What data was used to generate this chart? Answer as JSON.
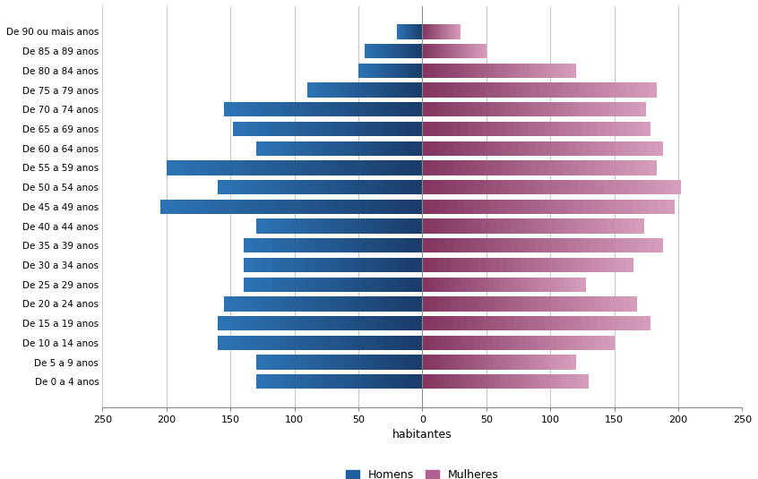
{
  "age_groups": [
    "De 0 a 4 anos",
    "De 5 a 9 anos",
    "De 10 a 14 anos",
    "De 15 a 19 anos",
    "De 20 a 24 anos",
    "De 25 a 29 anos",
    "De 30 a 34 anos",
    "De 35 a 39 anos",
    "De 40 a 44 anos",
    "De 45 a 49 anos",
    "De 50 a 54 anos",
    "De 55 a 59 anos",
    "De 60 a 64 anos",
    "De 65 a 69 anos",
    "De 70 a 74 anos",
    "De 75 a 79 anos",
    "De 80 a 84 anos",
    "De 85 a 89 anos",
    "De 90 ou mais anos"
  ],
  "homens": [
    130,
    130,
    160,
    160,
    155,
    140,
    140,
    140,
    130,
    205,
    160,
    200,
    130,
    148,
    155,
    90,
    50,
    45,
    20
  ],
  "mulheres": [
    130,
    120,
    150,
    178,
    168,
    128,
    165,
    188,
    173,
    197,
    202,
    183,
    188,
    178,
    175,
    183,
    120,
    50,
    30
  ],
  "color_homens_dark": "#1a3d6b",
  "color_homens_light": "#2e75b6",
  "color_mulheres_dark": "#833660",
  "color_mulheres_light": "#d9a0bf",
  "xlabel": "habitantes",
  "legend_homens": "Homens",
  "legend_mulheres": "Mulheres",
  "xlim": 250,
  "xticks": [
    -250,
    -200,
    -150,
    -100,
    -50,
    0,
    50,
    100,
    150,
    200,
    250
  ],
  "background_color": "#ffffff",
  "grid_color": "#bbbbbb"
}
